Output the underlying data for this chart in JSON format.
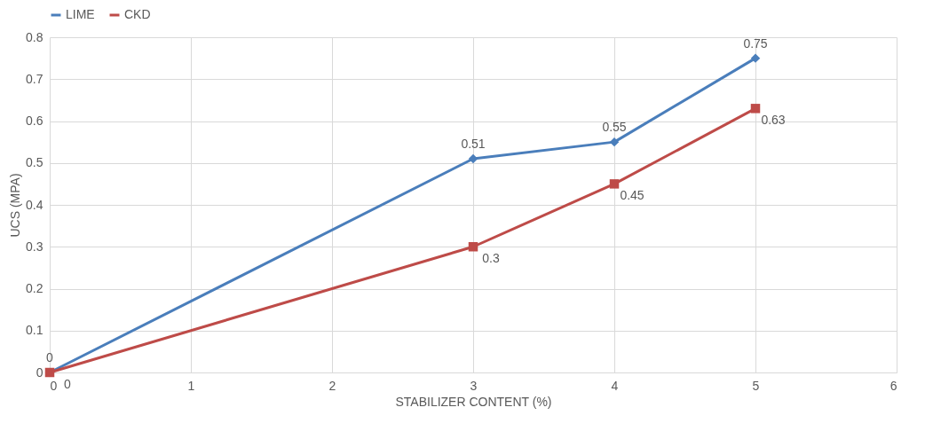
{
  "chart_data": {
    "type": "line",
    "xlabel": "STABILIZER CONTENT (%)",
    "ylabel": "UCS (MPA)",
    "xlim": [
      0,
      6
    ],
    "xticks": [
      0,
      1,
      2,
      3,
      4,
      5,
      6
    ],
    "ylim": [
      0,
      0.8
    ],
    "yticks": [
      0,
      0.1,
      0.2,
      0.3,
      0.4,
      0.5,
      0.6,
      0.7,
      0.8
    ],
    "grid": true,
    "legend": "top",
    "data_labels": true,
    "series": [
      {
        "name": "LIME",
        "color": "#4a7ebb",
        "marker": "diamond",
        "x": [
          0,
          3,
          4,
          5
        ],
        "values": [
          0,
          0.51,
          0.55,
          0.75
        ]
      },
      {
        "name": "CKD",
        "color": "#be4b48",
        "marker": "square",
        "x": [
          0,
          3,
          4,
          5
        ],
        "values": [
          0,
          0.3,
          0.45,
          0.63
        ]
      }
    ]
  }
}
